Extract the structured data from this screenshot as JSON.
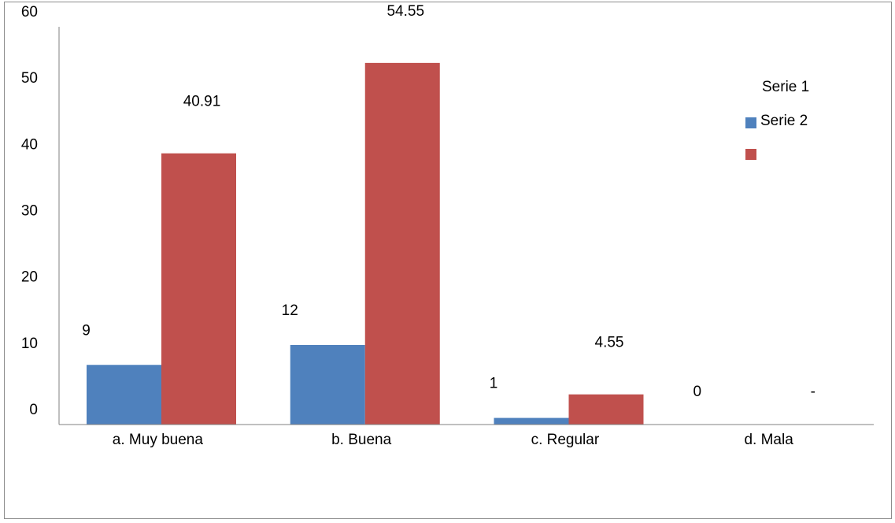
{
  "chart_data": {
    "type": "bar",
    "title": "",
    "xlabel": "",
    "ylabel": "",
    "categories": [
      "a. Muy buena",
      "b. Buena",
      "c. Regular",
      "d. Mala"
    ],
    "y_tick_labels": [
      "0",
      "10",
      "20",
      "30",
      "40",
      "50",
      "60"
    ],
    "ylim": [
      0,
      60
    ],
    "grid": false,
    "legend_position": "right",
    "series": [
      {
        "name": "Serie 1",
        "color": "#4f81bd",
        "values": [
          9,
          12,
          1,
          0
        ],
        "labels": [
          "9",
          "12",
          "1",
          "0"
        ]
      },
      {
        "name": "Serie 2",
        "color": "#c0504d",
        "values": [
          40.91,
          54.55,
          4.55,
          0
        ],
        "labels": [
          "40.91",
          "54.55",
          "4.55",
          "-"
        ]
      }
    ]
  }
}
